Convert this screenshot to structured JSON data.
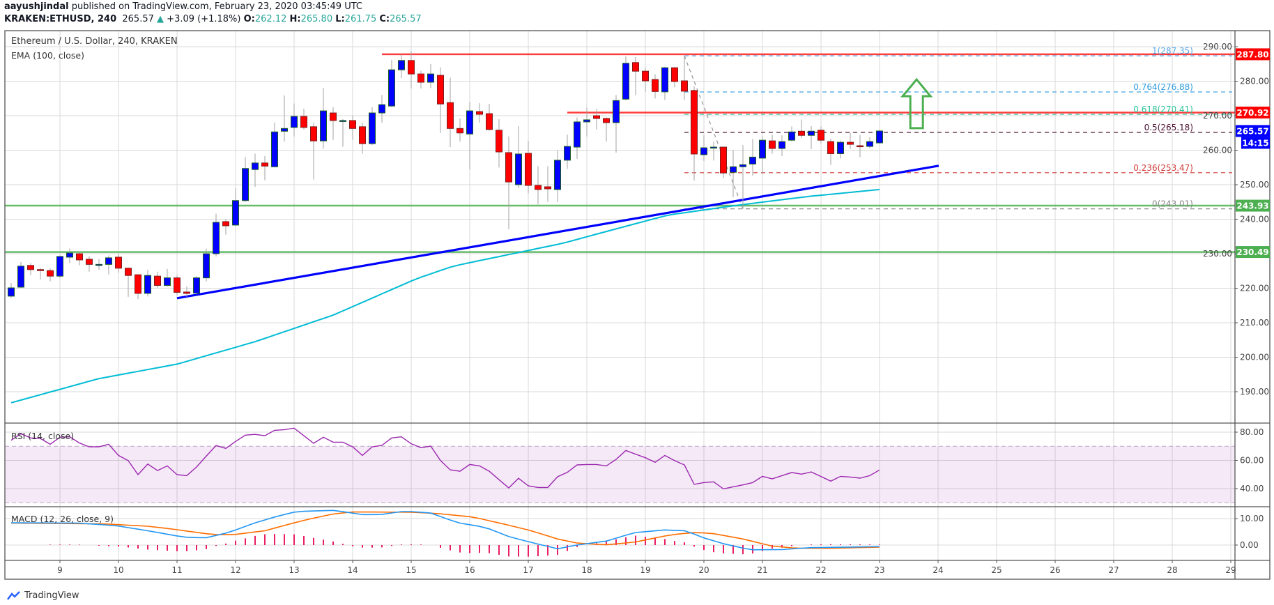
{
  "header": {
    "author": "aayushjindal",
    "published": "published on TradingView.com, February 23, 2020 03:45:49 UTC",
    "symbol": "KRAKEN:ETHUSD, 240",
    "last": "265.57",
    "up_arrow": "▲",
    "change": "+3.09 (+1.18%)",
    "o_label": "O:",
    "o_value": "262.12",
    "h_label": "H:",
    "h_value": "265.80",
    "l_label": "L:",
    "l_value": "261.75",
    "c_label": "C:",
    "c_value": "265.57"
  },
  "footer": {
    "logo_text": "TradingView"
  },
  "chart_data": {
    "type": "candlestick",
    "title": "Ethereum / U.S. Dollar, 240, KRAKEN",
    "ema_label": "EMA (100, close)",
    "colors": {
      "up": "#0000ff",
      "down": "#ff0000",
      "up_border": "#1b5e20",
      "down_border": "#7f1d1d",
      "wick": "#a0a0a0",
      "ema": "#00bcd4",
      "trendline": "#0000ff",
      "resistance": "#ff1a1a",
      "support": "#4caf50",
      "arrow": "#4caf50"
    },
    "ylim": [
      180,
      292
    ],
    "candles_ohlc": [
      [
        217.7,
        221.5,
        217.3,
        220.1
      ],
      [
        220.3,
        227.6,
        220,
        226.4
      ],
      [
        226.6,
        227.3,
        223.8,
        225.4
      ],
      [
        225.4,
        225.8,
        222.6,
        225.2
      ],
      [
        225.1,
        225.8,
        222,
        223.5
      ],
      [
        223.5,
        229.5,
        223,
        229.2
      ],
      [
        229,
        231.5,
        227.3,
        230.2
      ],
      [
        230,
        230.5,
        226.6,
        228.2
      ],
      [
        228.4,
        229.3,
        224.8,
        226.9
      ],
      [
        226.9,
        228.5,
        225.3,
        226.9
      ],
      [
        226.9,
        229.5,
        224,
        228.8
      ],
      [
        229,
        230,
        224.5,
        225.8
      ],
      [
        225.8,
        226,
        217.5,
        223.7
      ],
      [
        223.9,
        224,
        216.8,
        218.5
      ],
      [
        218.5,
        225.3,
        217.6,
        223.7
      ],
      [
        223.5,
        224.8,
        220,
        220.8
      ],
      [
        220.8,
        225.6,
        220.5,
        223
      ],
      [
        223,
        223.8,
        218,
        218.8
      ],
      [
        218.9,
        220.5,
        217.5,
        218.5
      ],
      [
        218.6,
        223.5,
        218.2,
        223
      ],
      [
        223,
        231.5,
        222,
        230
      ],
      [
        230,
        241.6,
        229.2,
        239.1
      ],
      [
        239.3,
        240,
        235.5,
        238.1
      ],
      [
        238.3,
        249,
        238,
        245.4
      ],
      [
        245.4,
        258,
        245,
        254.7
      ],
      [
        254.4,
        259,
        249.4,
        256.3
      ],
      [
        256.3,
        258.3,
        251.3,
        255.4
      ],
      [
        255.2,
        268,
        255,
        265.3
      ],
      [
        265.5,
        275.9,
        262.5,
        266.3
      ],
      [
        266.6,
        273.5,
        264,
        269.8
      ],
      [
        269.8,
        272,
        266,
        266.6
      ],
      [
        266.8,
        268,
        251.5,
        262.7
      ],
      [
        262.7,
        278,
        260.4,
        271.4
      ],
      [
        270.8,
        272.5,
        263,
        268.6
      ],
      [
        268.6,
        269,
        261,
        268.6
      ],
      [
        268.6,
        270,
        263,
        266.3
      ],
      [
        266.8,
        268,
        259,
        261.9
      ],
      [
        261.9,
        272.5,
        261.5,
        270.8
      ],
      [
        270.8,
        276,
        268,
        273.2
      ],
      [
        272.8,
        286.2,
        272.5,
        283.3
      ],
      [
        283.3,
        287.8,
        280.9,
        286
      ],
      [
        286,
        288.8,
        277.9,
        282.1
      ],
      [
        282.1,
        283,
        277.9,
        279.7
      ],
      [
        279.7,
        285,
        278,
        282.1
      ],
      [
        281.7,
        284,
        265,
        273.4
      ],
      [
        273.8,
        281,
        260.9,
        266.3
      ],
      [
        266.3,
        269.2,
        262.5,
        265
      ],
      [
        264.7,
        274,
        254.4,
        271.4
      ],
      [
        271.2,
        273.6,
        268,
        270.4
      ],
      [
        270.6,
        273.4,
        265.7,
        266
      ],
      [
        265.8,
        269,
        255,
        259.5
      ],
      [
        259.3,
        264,
        237.1,
        250.8
      ],
      [
        250,
        267,
        249,
        258.9
      ],
      [
        259.1,
        262.7,
        247.5,
        249.8
      ],
      [
        249.8,
        255.4,
        244.3,
        248.6
      ],
      [
        249.4,
        255.4,
        245,
        248.8
      ],
      [
        248.6,
        259.9,
        245,
        257.1
      ],
      [
        257.1,
        264.5,
        254.6,
        261.1
      ],
      [
        260.9,
        269.5,
        257.5,
        268.2
      ],
      [
        268.2,
        272.4,
        264,
        268.8
      ],
      [
        270,
        272,
        266,
        269.2
      ],
      [
        269.2,
        269.5,
        262.5,
        268
      ],
      [
        268,
        276,
        259.3,
        274.4
      ],
      [
        274.8,
        287.2,
        274.5,
        285.2
      ],
      [
        285.4,
        287,
        276,
        282.9
      ],
      [
        282.9,
        284,
        276.8,
        280.1
      ],
      [
        280.5,
        282,
        275,
        277
      ],
      [
        276.9,
        284.2,
        274.6,
        283.9
      ],
      [
        283.9,
        284.2,
        278.2,
        279.9
      ],
      [
        280.1,
        287.35,
        274.6,
        277.1
      ],
      [
        277.3,
        278.5,
        251.2,
        258.9
      ],
      [
        258.7,
        264.3,
        256.9,
        260.7
      ],
      [
        260.9,
        262.5,
        257,
        260.9
      ],
      [
        260.9,
        261,
        251.9,
        253.4
      ],
      [
        253.6,
        260,
        246.4,
        255.2
      ],
      [
        255.2,
        261.5,
        243.01,
        255.8
      ],
      [
        256,
        263.2,
        252.6,
        258
      ],
      [
        257.7,
        264.2,
        253,
        262.9
      ],
      [
        262.7,
        264.5,
        259,
        260.5
      ],
      [
        260.5,
        264.3,
        258.3,
        262.5
      ],
      [
        262.9,
        266.9,
        262.5,
        265.3
      ],
      [
        265.5,
        268.9,
        263.5,
        264.3
      ],
      [
        264.3,
        267,
        260.3,
        265.5
      ],
      [
        265.8,
        266.9,
        262,
        262.9
      ],
      [
        262.5,
        263.3,
        255.7,
        259
      ],
      [
        259,
        262.8,
        257.6,
        262.3
      ],
      [
        262.3,
        265,
        260.3,
        261.7
      ],
      [
        261.3,
        264.4,
        258,
        261.1
      ],
      [
        261.1,
        263.8,
        260.5,
        262.5
      ],
      [
        262.12,
        265.8,
        261.75,
        265.57
      ]
    ],
    "ema_anchors": [
      [
        0,
        186.8
      ],
      [
        9,
        193.8
      ],
      [
        17,
        198
      ],
      [
        25,
        204.5
      ],
      [
        33,
        212.2
      ],
      [
        41.5,
        222.7
      ],
      [
        45.3,
        226.4
      ],
      [
        56.5,
        233
      ],
      [
        61.2,
        236.6
      ],
      [
        67.4,
        241.25
      ],
      [
        74.6,
        244.1
      ],
      [
        81.7,
        246.6
      ],
      [
        89,
        248.6
      ]
    ],
    "horizontal_lines": [
      {
        "price": 287.8,
        "label": "287.80",
        "kind": "resistance",
        "start_index": 38
      },
      {
        "price": 270.92,
        "label": "270.92",
        "kind": "resistance",
        "start_index": 57
      },
      {
        "price": 243.93,
        "label": "243.93",
        "kind": "support",
        "start_index": -1
      },
      {
        "price": 230.49,
        "label": "230.49",
        "kind": "support",
        "start_index": -1
      }
    ],
    "trendline": {
      "from": [
        17,
        217.1
      ],
      "to": [
        95.07,
        255.5
      ]
    },
    "fibonacci": {
      "from": [
        69,
        287.35
      ],
      "to": [
        75,
        243.01
      ],
      "levels": [
        {
          "ratio": 1,
          "price": 287.35,
          "label": "1(287.35)",
          "color": "#5aa8e6"
        },
        {
          "ratio": 0.764,
          "price": 276.88,
          "label": "0.764(276.88)",
          "color": "#2f9be0"
        },
        {
          "ratio": 0.618,
          "price": 270.41,
          "label": "0.618(270.41)",
          "color": "#2bc59a"
        },
        {
          "ratio": 0.5,
          "price": 265.18,
          "label": "0.5(265.18)",
          "color": "#4a1030"
        },
        {
          "ratio": 0.236,
          "price": 253.47,
          "label": "0.236(253.47)",
          "color": "#d23a3a"
        },
        {
          "ratio": 0,
          "price": 243.01,
          "label": "0(243.01)",
          "color": "#888888"
        }
      ]
    },
    "arrow": {
      "direction": "up",
      "center_index": 92.8,
      "tip_price": 280.5,
      "base_price": 266.4
    },
    "price_ticks": [
      "290.00",
      "280.00",
      "270.00",
      "260.00",
      "250.00",
      "240.00",
      "230.00",
      "220.00",
      "210.00",
      "200.00",
      "190.00"
    ],
    "last_price_badge": {
      "price": 265.57,
      "label": "265.57",
      "countdown": "14:15",
      "color": "#0000ff"
    },
    "time_axis": {
      "labels": [
        "9",
        "10",
        "11",
        "12",
        "13",
        "14",
        "15",
        "16",
        "17",
        "18",
        "19",
        "20",
        "21",
        "22",
        "23",
        "24",
        "25",
        "26",
        "27",
        "28",
        "29"
      ],
      "first_label_candle_index": 5,
      "candles_per_label": 6
    },
    "rsi": {
      "label": "RSI (14, close)",
      "color": "#9c27b0",
      "upper_band": 70,
      "lower_band": 30,
      "ticks": [
        "80.00",
        "60.00",
        "40.00"
      ],
      "values": [
        74.2,
        78.9,
        75.9,
        75.5,
        71.4,
        76.4,
        76.7,
        72.3,
        69.6,
        69.6,
        71.4,
        63.5,
        59.8,
        49.9,
        57.4,
        52.8,
        56.1,
        49.9,
        49.2,
        55.3,
        63,
        70.5,
        68.5,
        73.4,
        77.9,
        78.4,
        77.5,
        81.3,
        81.8,
        82.8,
        77.5,
        72.1,
        76.4,
        72.9,
        72.9,
        69.6,
        63.5,
        69.6,
        70.6,
        75.9,
        76.7,
        71.8,
        69,
        70.1,
        59.9,
        53.3,
        52.3,
        57.1,
        56.1,
        52.3,
        46.3,
        40.5,
        47.3,
        42,
        40.8,
        40.8,
        48.4,
        51.5,
        56.8,
        57.1,
        57.1,
        56.1,
        60.7,
        67,
        64.4,
        61.9,
        58.6,
        63.5,
        59.8,
        56.8,
        43,
        44.3,
        44.8,
        39.8,
        41.3,
        42.6,
        44.3,
        48.7,
        46.9,
        49.2,
        51.4,
        50.2,
        51.8,
        48.6,
        45.3,
        48.7,
        48.2,
        47.4,
        49.2,
        53.2
      ]
    },
    "macd": {
      "label": "MACD (12, 26, close, 9)",
      "macd_color": "#2196f3",
      "signal_color": "#ff6d00",
      "hist_color": "#e91e63",
      "ticks": [
        "10.00",
        "0.00"
      ],
      "macd_anchors": [
        [
          0,
          8.4
        ],
        [
          6.8,
          8.3
        ],
        [
          10.8,
          7.3
        ],
        [
          14,
          5.4
        ],
        [
          17.7,
          3
        ],
        [
          19.9,
          2.7
        ],
        [
          22,
          4.5
        ],
        [
          23.1,
          5.8
        ],
        [
          25,
          8.4
        ],
        [
          27.4,
          11
        ],
        [
          29.1,
          12.5
        ],
        [
          30.3,
          12.8
        ],
        [
          33.1,
          13.1
        ],
        [
          36,
          11.5
        ],
        [
          37.9,
          11.5
        ],
        [
          40.3,
          12.8
        ],
        [
          42.9,
          12.2
        ],
        [
          45.8,
          8.4
        ],
        [
          48.6,
          6.7
        ],
        [
          51,
          3.2
        ],
        [
          53.3,
          1
        ],
        [
          56,
          -1.4
        ],
        [
          58.1,
          0.1
        ],
        [
          61,
          1.5
        ],
        [
          63.9,
          4.7
        ],
        [
          67,
          5.7
        ],
        [
          69.1,
          5.4
        ],
        [
          71,
          2.7
        ],
        [
          73.2,
          0.3
        ],
        [
          75.8,
          -1.8
        ],
        [
          79.1,
          -1.7
        ],
        [
          81.7,
          -1
        ],
        [
          89,
          -0.6
        ]
      ],
      "signal_anchors": [
        [
          0,
          8.3
        ],
        [
          9.6,
          8
        ],
        [
          14,
          7.1
        ],
        [
          16.4,
          6.1
        ],
        [
          20.6,
          4
        ],
        [
          22.7,
          3.9
        ],
        [
          26,
          5.4
        ],
        [
          28.6,
          8
        ],
        [
          30.3,
          9.6
        ],
        [
          33.1,
          11.8
        ],
        [
          35,
          12.5
        ],
        [
          40.9,
          12.4
        ],
        [
          43.7,
          11.9
        ],
        [
          47.3,
          10.6
        ],
        [
          51,
          7.5
        ],
        [
          53.3,
          5.4
        ],
        [
          56,
          2.3
        ],
        [
          58.1,
          0.7
        ],
        [
          61,
          0.1
        ],
        [
          63.9,
          1.1
        ],
        [
          67.5,
          3.8
        ],
        [
          69.8,
          4.7
        ],
        [
          71.7,
          4.5
        ],
        [
          75,
          2.3
        ],
        [
          78,
          -0.4
        ],
        [
          80.5,
          -1.2
        ],
        [
          84,
          -1.2
        ],
        [
          89,
          -0.8
        ]
      ]
    }
  }
}
